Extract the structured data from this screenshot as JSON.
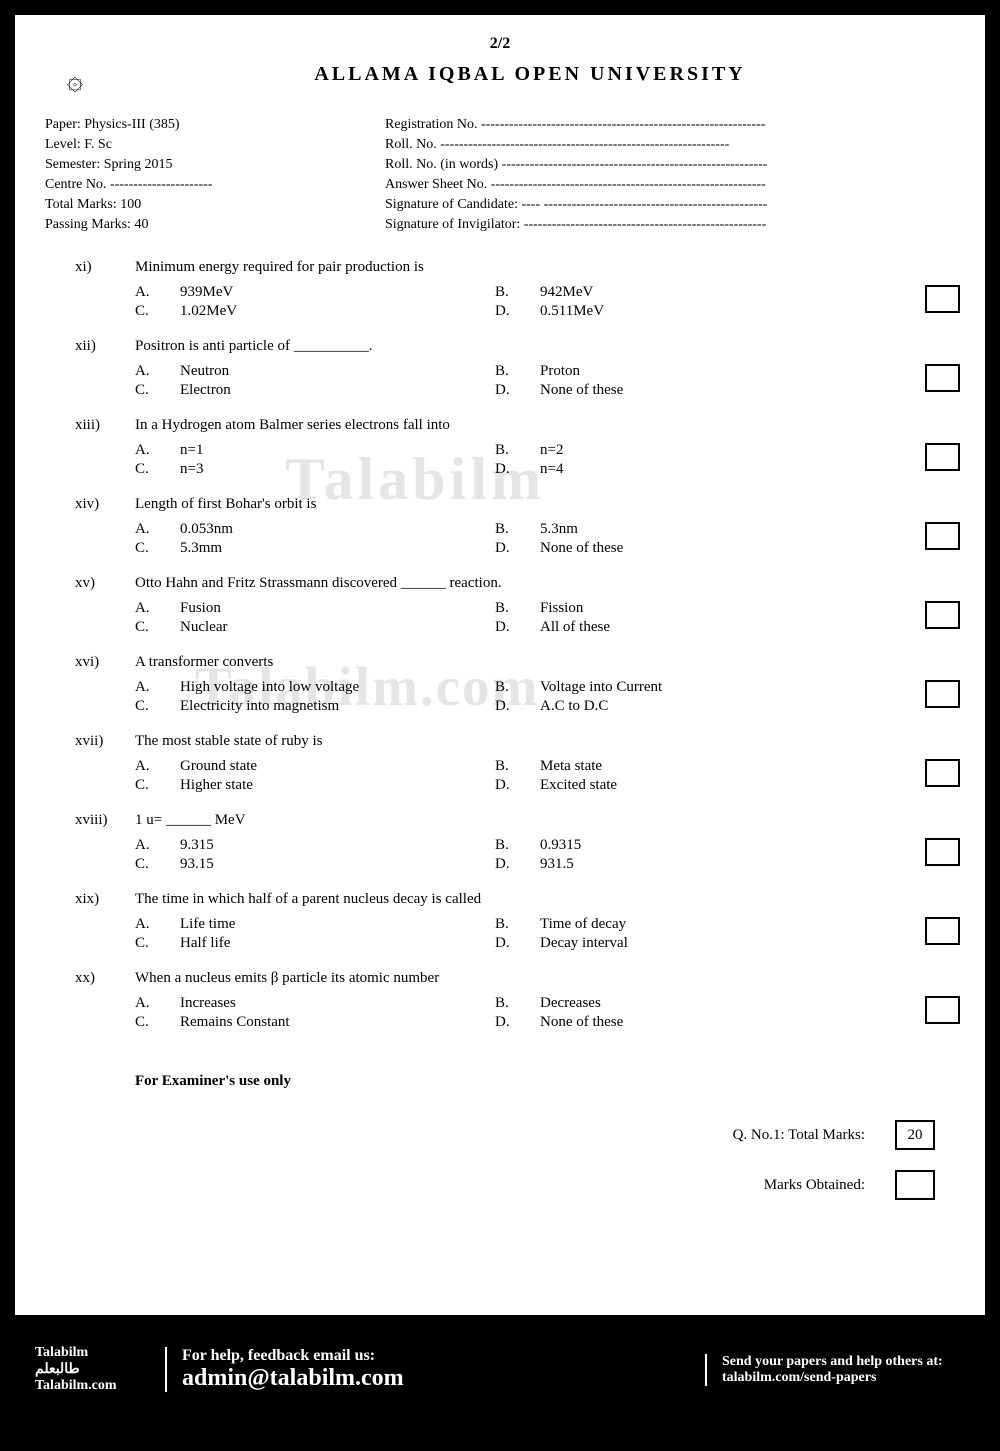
{
  "page_num": "2/2",
  "university": "ALLAMA IQBAL OPEN UNIVERSITY",
  "meta_left": {
    "paper": "Paper: Physics-III  (385)",
    "level": "Level:  F. Sc",
    "semester": "Semester: Spring 2015",
    "centre": "Centre No. ----------------------",
    "total_marks": "Total Marks: 100",
    "passing_marks": "Passing Marks: 40"
  },
  "meta_right": {
    "reg": "Registration No. -------------------------------------------------------------",
    "roll": "Roll. No.        --------------------------------------------------------------",
    "roll_words": "Roll. No. (in words) ---------------------------------------------------------",
    "ans_sheet": "Answer Sheet No. -----------------------------------------------------------",
    "sig_cand": "Signature of Candidate: ----  ------------------------------------------------",
    "sig_inv": "Signature of Invigilator: ----------------------------------------------------"
  },
  "questions": [
    {
      "num": "xi)",
      "text": "Minimum energy required for pair production is",
      "a": "939MeV",
      "b": "942MeV",
      "c": "1.02MeV",
      "d": "0.511MeV"
    },
    {
      "num": "xii)",
      "text": "Positron is anti particle of __________.",
      "a": "Neutron",
      "b": "Proton",
      "c": "Electron",
      "d": "None of these"
    },
    {
      "num": "xiii)",
      "text": "In a Hydrogen atom Balmer series electrons fall into",
      "a": "n=1",
      "b": "n=2",
      "c": "n=3",
      "d": "n=4"
    },
    {
      "num": "xiv)",
      "text": "Length of first Bohar's orbit is",
      "a": "0.053nm",
      "b": "5.3nm",
      "c": "5.3mm",
      "d": "None of these"
    },
    {
      "num": "xv)",
      "text": "Otto Hahn and Fritz Strassmann discovered ______ reaction.",
      "a": "Fusion",
      "b": "Fission",
      "c": "Nuclear",
      "d": "All of these"
    },
    {
      "num": "xvi)",
      "text": "A transformer converts",
      "a": "High voltage into low voltage",
      "b": "Voltage into Current",
      "c": "Electricity into magnetism",
      "d": "A.C to D.C"
    },
    {
      "num": "xvii)",
      "text": "The most stable state of ruby is",
      "a": "Ground state",
      "b": "Meta state",
      "c": "Higher state",
      "d": "Excited state"
    },
    {
      "num": "xviii)",
      "text": "1 u= ______ MeV",
      "a": "9.315",
      "b": "0.9315",
      "c": "93.15",
      "d": "931.5"
    },
    {
      "num": "xix)",
      "text": "The time in which half of a parent nucleus decay is called",
      "a": "Life time",
      "b": "Time of decay",
      "c": "Half life",
      "d": "Decay interval"
    },
    {
      "num": "xx)",
      "text": "When a nucleus emits β particle its atomic number",
      "a": "Increases",
      "b": "Decreases",
      "c": "Remains Constant",
      "d": "None of these"
    }
  ],
  "examiner": {
    "title": "For Examiner's use only",
    "total_label": "Q. No.1: Total Marks:",
    "total_value": "20",
    "obtained_label": "Marks Obtained:"
  },
  "watermark1": "Talabilm",
  "watermark2": "Talabilm.com",
  "footer": {
    "brand1": "Talabilm",
    "brand2": "طالبعلم",
    "brand3": "Talabilm.com",
    "help1": "For help, feedback email us:",
    "email": "admin@talabilm.com",
    "send1": "Send your papers and help others at:",
    "send2": "talabilm.com/send-papers"
  }
}
